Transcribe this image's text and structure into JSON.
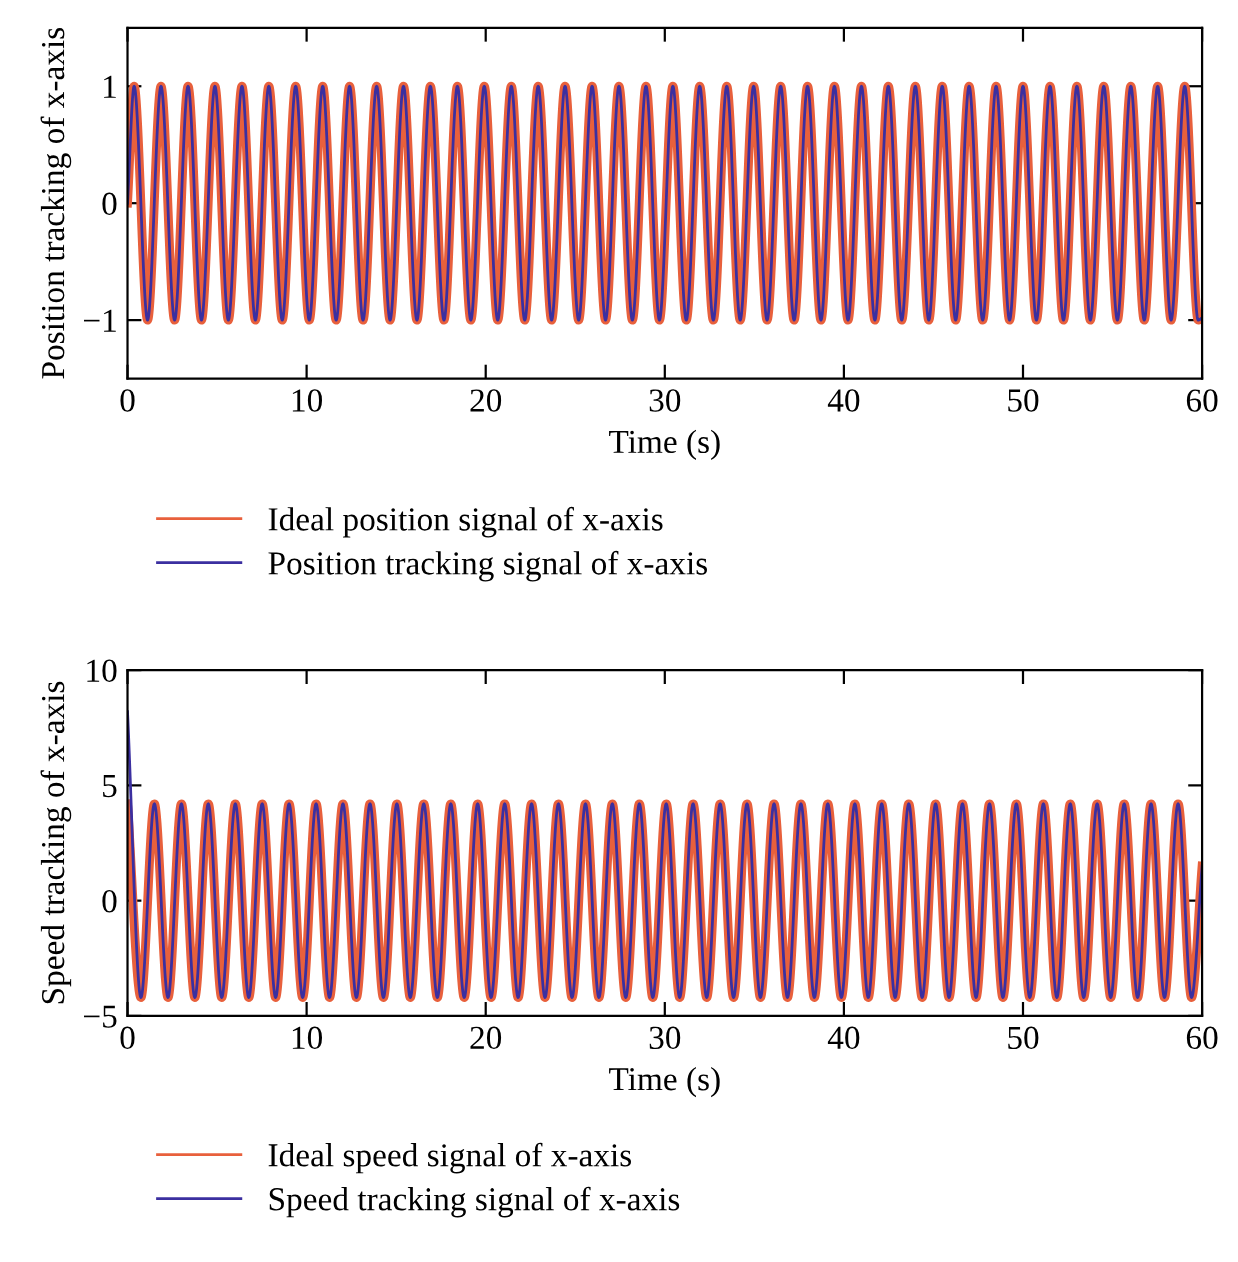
{
  "chart_data": [
    {
      "type": "line",
      "xlabel": "Time (s)",
      "ylabel": "Position tracking of x-axis",
      "xlim": [
        0,
        60
      ],
      "xticks": [
        0,
        10,
        20,
        30,
        40,
        50,
        60
      ],
      "ylim": [
        -1.5,
        1.5
      ],
      "yticks": [
        -1,
        0,
        1
      ],
      "legend": "bottom",
      "grid": false,
      "x": [
        0,
        0.37,
        1.12,
        1.87,
        2.63,
        3.38,
        4.13,
        4.88,
        5.63,
        6.39,
        7.14,
        7.89,
        8.64,
        9.39,
        10.15,
        10.9,
        11.65,
        12.4,
        13.15,
        13.91,
        14.66,
        15.41,
        16.16,
        16.91,
        17.67,
        18.42,
        19.17,
        19.92,
        20.67,
        21.43,
        22.18,
        22.93,
        23.68,
        24.43,
        25.19,
        25.94,
        26.69,
        27.44,
        28.19,
        28.95,
        29.7,
        30.45,
        31.2,
        31.95,
        32.71,
        33.46,
        34.21,
        34.96,
        35.71,
        36.47,
        37.22,
        37.97,
        38.72,
        39.47,
        40.23,
        40.98,
        41.73,
        42.48,
        43.23,
        43.99,
        44.74,
        45.49,
        46.24,
        46.99,
        47.75,
        48.5,
        49.25,
        50.0,
        50.75,
        51.51,
        52.26,
        53.01,
        53.76,
        54.51,
        55.27,
        56.02,
        56.77,
        57.52,
        58.27,
        59.03,
        59.78,
        60
      ],
      "series": [
        {
          "name": "Ideal position signal of x-axis",
          "color": "#e8603c",
          "values": [
            0,
            1,
            -1,
            1,
            -1,
            1,
            -1,
            1,
            -1,
            1,
            -1,
            1,
            -1,
            1,
            -1,
            1,
            -1,
            1,
            -1,
            1,
            -1,
            1,
            -1,
            1,
            -1,
            1,
            -1,
            1,
            -1,
            1,
            -1,
            1,
            -1,
            1,
            -1,
            1,
            -1,
            1,
            -1,
            1,
            -1,
            1,
            -1,
            1,
            -1,
            1,
            -1,
            1,
            -1,
            1,
            -1,
            1,
            -1,
            1,
            -1,
            1,
            -1,
            1,
            -1,
            1,
            -1,
            1,
            -1,
            1,
            -1,
            1,
            -1,
            1,
            -1,
            1,
            -1,
            1,
            -1,
            1,
            -1,
            1,
            -1,
            1,
            -1,
            1,
            -1,
            -0.98
          ]
        },
        {
          "name": "Position tracking signal of x-axis",
          "color": "#3b2fa0",
          "values": [
            0,
            1,
            -1,
            1,
            -1,
            1,
            -1,
            1,
            -1,
            1,
            -1,
            1,
            -1,
            1,
            -1,
            1,
            -1,
            1,
            -1,
            1,
            -1,
            1,
            -1,
            1,
            -1,
            1,
            -1,
            1,
            -1,
            1,
            -1,
            1,
            -1,
            1,
            -1,
            1,
            -1,
            1,
            -1,
            1,
            -1,
            1,
            -1,
            1,
            -1,
            1,
            -1,
            1,
            -1,
            1,
            -1,
            1,
            -1,
            1,
            -1,
            1,
            -1,
            1,
            -1,
            1,
            -1,
            1,
            -1,
            1,
            -1,
            1,
            -1,
            1,
            -1,
            1,
            -1,
            1,
            -1,
            1,
            -1,
            1,
            -1,
            1,
            -1,
            1,
            -1,
            -0.98
          ]
        }
      ]
    },
    {
      "type": "line",
      "xlabel": "Time (s)",
      "ylabel": "Speed tracking of x-axis",
      "xlim": [
        0,
        60
      ],
      "xticks": [
        0,
        10,
        20,
        30,
        40,
        50,
        60
      ],
      "ylim": [
        -5,
        10
      ],
      "yticks": [
        -5,
        0,
        5,
        10
      ],
      "legend": "bottom",
      "grid": false,
      "x": [
        0,
        0.75,
        1.5,
        2.26,
        3.01,
        3.76,
        4.51,
        5.26,
        6.02,
        6.77,
        7.52,
        8.27,
        9.02,
        9.78,
        10.53,
        11.28,
        12.03,
        12.78,
        13.54,
        14.29,
        15.04,
        15.79,
        16.54,
        17.3,
        18.05,
        18.8,
        19.55,
        20.3,
        21.06,
        21.81,
        22.56,
        23.31,
        24.06,
        24.82,
        25.57,
        26.32,
        27.07,
        27.82,
        28.58,
        29.33,
        30.08,
        30.83,
        31.58,
        32.34,
        33.09,
        33.84,
        34.59,
        35.34,
        36.1,
        36.85,
        37.6,
        38.35,
        39.1,
        39.86,
        40.61,
        41.36,
        42.11,
        42.86,
        43.62,
        44.37,
        45.12,
        45.87,
        46.62,
        47.38,
        48.13,
        48.88,
        49.63,
        50.38,
        51.14,
        51.89,
        52.64,
        53.39,
        54.14,
        54.9,
        55.65,
        56.4,
        57.15,
        57.9,
        58.66,
        59.41,
        60
      ],
      "series": [
        {
          "name": "Ideal speed signal of x-axis",
          "color": "#e8603c",
          "values": [
            4.2,
            -4.2,
            4.2,
            -4.2,
            4.2,
            -4.2,
            4.2,
            -4.2,
            4.2,
            -4.2,
            4.2,
            -4.2,
            4.2,
            -4.2,
            4.2,
            -4.2,
            4.2,
            -4.2,
            4.2,
            -4.2,
            4.2,
            -4.2,
            4.2,
            -4.2,
            4.2,
            -4.2,
            4.2,
            -4.2,
            4.2,
            -4.2,
            4.2,
            -4.2,
            4.2,
            -4.2,
            4.2,
            -4.2,
            4.2,
            -4.2,
            4.2,
            -4.2,
            4.2,
            -4.2,
            4.2,
            -4.2,
            4.2,
            -4.2,
            4.2,
            -4.2,
            4.2,
            -4.2,
            4.2,
            -4.2,
            4.2,
            -4.2,
            4.2,
            -4.2,
            4.2,
            -4.2,
            4.2,
            -4.2,
            4.2,
            -4.2,
            4.2,
            -4.2,
            4.2,
            -4.2,
            4.2,
            -4.2,
            4.2,
            -4.2,
            4.2,
            -4.2,
            4.2,
            -4.2,
            4.2,
            -4.2,
            4.2,
            -4.2,
            4.2,
            -4.2,
            1.5
          ]
        },
        {
          "name": "Speed tracking signal of x-axis",
          "color": "#3b2fa0",
          "values": [
            8.2,
            -4.2,
            4.2,
            -4.2,
            4.2,
            -4.2,
            4.2,
            -4.2,
            4.2,
            -4.2,
            4.2,
            -4.2,
            4.2,
            -4.2,
            4.2,
            -4.2,
            4.2,
            -4.2,
            4.2,
            -4.2,
            4.2,
            -4.2,
            4.2,
            -4.2,
            4.2,
            -4.2,
            4.2,
            -4.2,
            4.2,
            -4.2,
            4.2,
            -4.2,
            4.2,
            -4.2,
            4.2,
            -4.2,
            4.2,
            -4.2,
            4.2,
            -4.2,
            4.2,
            -4.2,
            4.2,
            -4.2,
            4.2,
            -4.2,
            4.2,
            -4.2,
            4.2,
            -4.2,
            4.2,
            -4.2,
            4.2,
            -4.2,
            4.2,
            -4.2,
            4.2,
            -4.2,
            4.2,
            -4.2,
            4.2,
            -4.2,
            4.2,
            -4.2,
            4.2,
            -4.2,
            4.2,
            -4.2,
            4.2,
            -4.2,
            4.2,
            -4.2,
            4.2,
            -4.2,
            4.2,
            -4.2,
            4.2,
            -4.2,
            4.2,
            -4.2,
            1.5
          ]
        }
      ]
    }
  ]
}
